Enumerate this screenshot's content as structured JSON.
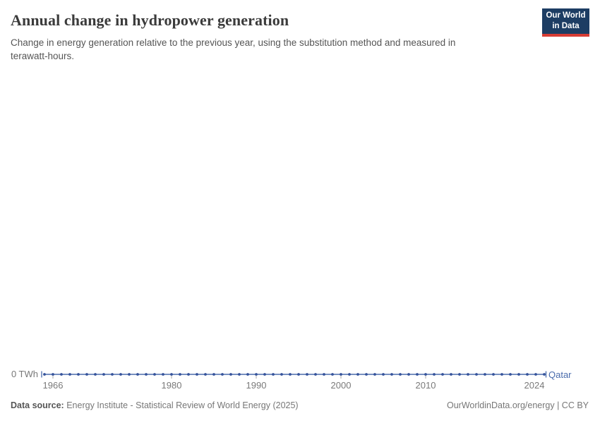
{
  "header": {
    "title": "Annual change in hydropower generation",
    "subtitle_line1": "Change in energy generation relative to the previous year, using the substitution method and measured in",
    "subtitle_line2": "terawatt-hours."
  },
  "logo": {
    "line1": "Our World",
    "line2": "in Data",
    "bg_color": "#1d3d63",
    "accent_color": "#d73c34"
  },
  "chart_data": {
    "type": "line",
    "title": "Annual change in hydropower generation",
    "subtitle": "Change in energy generation relative to the previous year, using the substitution method and measured in terawatt-hours.",
    "unit": "TWh",
    "xlim": [
      1965,
      2024
    ],
    "ylim": [
      0,
      0
    ],
    "grid": false,
    "legend_position": "line-end-entity-label",
    "y_axis_label": "0 TWh",
    "x_ticks": [
      1966,
      1980,
      1990,
      2000,
      2010,
      2024
    ],
    "x": [
      1965,
      1966,
      1967,
      1968,
      1969,
      1970,
      1971,
      1972,
      1973,
      1974,
      1975,
      1976,
      1977,
      1978,
      1979,
      1980,
      1981,
      1982,
      1983,
      1984,
      1985,
      1986,
      1987,
      1988,
      1989,
      1990,
      1991,
      1992,
      1993,
      1994,
      1995,
      1996,
      1997,
      1998,
      1999,
      2000,
      2001,
      2002,
      2003,
      2004,
      2005,
      2006,
      2007,
      2008,
      2009,
      2010,
      2011,
      2012,
      2013,
      2014,
      2015,
      2016,
      2017,
      2018,
      2019,
      2020,
      2021,
      2022,
      2023,
      2024
    ],
    "series": [
      {
        "name": "Qatar",
        "color": "#4a6cac",
        "dot_color": "#35539b",
        "values": [
          0,
          0,
          0,
          0,
          0,
          0,
          0,
          0,
          0,
          0,
          0,
          0,
          0,
          0,
          0,
          0,
          0,
          0,
          0,
          0,
          0,
          0,
          0,
          0,
          0,
          0,
          0,
          0,
          0,
          0,
          0,
          0,
          0,
          0,
          0,
          0,
          0,
          0,
          0,
          0,
          0,
          0,
          0,
          0,
          0,
          0,
          0,
          0,
          0,
          0,
          0,
          0,
          0,
          0,
          0,
          0,
          0,
          0,
          0,
          0
        ]
      }
    ],
    "axis_tick_color": "#a8a8a8"
  },
  "footer": {
    "datasource_label": "Data source:",
    "datasource_text": " Energy Institute - Statistical Review of World Energy (2025)",
    "credit": "OurWorldinData.org/energy | CC BY"
  }
}
